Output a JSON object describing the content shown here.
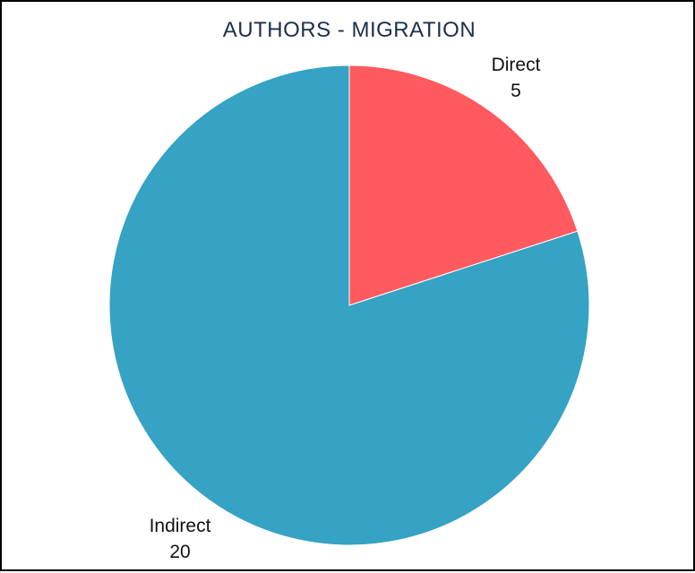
{
  "chart_data": {
    "type": "pie",
    "title": "AUTHORS - MIGRATION",
    "categories": [
      "Direct",
      "Indirect"
    ],
    "values": [
      5,
      20
    ],
    "colors": [
      "#ff5a5f",
      "#36a2c4"
    ],
    "start_angle": "12 o'clock",
    "direction": "clockwise",
    "legend": "none",
    "data_labels": "category name and value"
  }
}
